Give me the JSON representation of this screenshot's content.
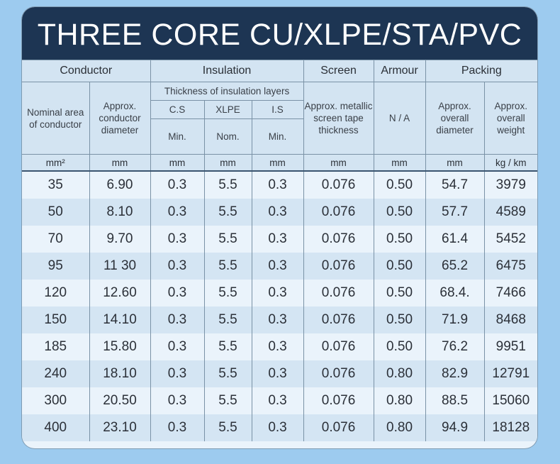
{
  "title": "THREE CORE CU/XLPE/STA/PVC",
  "groups": {
    "conductor": "Conductor",
    "insulation": "Insulation",
    "screen": "Screen",
    "armour": "Armour",
    "packing": "Packing"
  },
  "sub": {
    "nominal": "Nominal area of conductor",
    "cond_diam": "Approx. conductor diameter",
    "thickness": "Thickness of insulation layers",
    "cs": "C.S",
    "xlpe": "XLPE",
    "is": "I.S",
    "cs_q": "Min.",
    "xlpe_q": "Nom.",
    "is_q": "Min.",
    "screen": "Approx. metallic screen tape thickness",
    "armour": "N / A",
    "overall_diam": "Approx. overall diameter",
    "weight": "Approx. overall weight"
  },
  "units": [
    "mm²",
    "mm",
    "mm",
    "mm",
    "mm",
    "mm",
    "mm",
    "mm",
    "kg / km"
  ],
  "rows": [
    [
      "35",
      "6.90",
      "0.3",
      "5.5",
      "0.3",
      "0.076",
      "0.50",
      "54.7",
      "3979"
    ],
    [
      "50",
      "8.10",
      "0.3",
      "5.5",
      "0.3",
      "0.076",
      "0.50",
      "57.7",
      "4589"
    ],
    [
      "70",
      "9.70",
      "0.3",
      "5.5",
      "0.3",
      "0.076",
      "0.50",
      "61.4",
      "5452"
    ],
    [
      "95",
      "11 30",
      "0.3",
      "5.5",
      "0.3",
      "0.076",
      "0.50",
      "65.2",
      "6475"
    ],
    [
      "120",
      "12.60",
      "0.3",
      "5.5",
      "0.3",
      "0.076",
      "0.50",
      "68.4.",
      "7466"
    ],
    [
      "150",
      "14.10",
      "0.3",
      "5.5",
      "0.3",
      "0.076",
      "0.50",
      "71.9",
      "8468"
    ],
    [
      "185",
      "15.80",
      "0.3",
      "5.5",
      "0.3",
      "0.076",
      "0.50",
      "76.2",
      "9951"
    ],
    [
      "240",
      "18.10",
      "0.3",
      "5.5",
      "0.3",
      "0.076",
      "0.80",
      "82.9",
      "12791"
    ],
    [
      "300",
      "20.50",
      "0.3",
      "5.5",
      "0.3",
      "0.076",
      "0.80",
      "88.5",
      "15060"
    ],
    [
      "400",
      "23.10",
      "0.3",
      "5.5",
      "0.3",
      "0.076",
      "0.80",
      "94.9",
      "18128"
    ]
  ]
}
